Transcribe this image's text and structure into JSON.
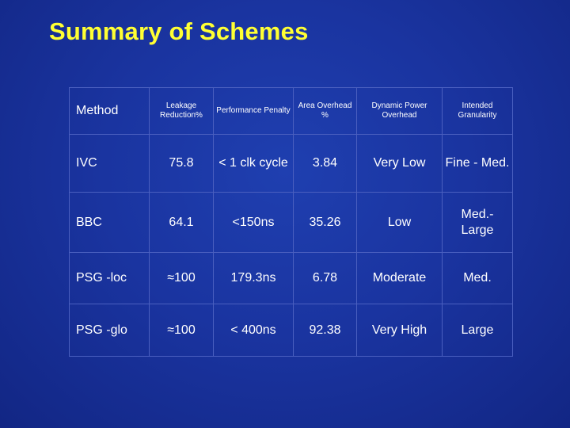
{
  "title": "Summary of Schemes",
  "table": {
    "headers": [
      "Method",
      "Leakage Reduction%",
      "Performance Penalty",
      "Area Overhead %",
      "Dynamic Power Overhead",
      "Intended Granularity"
    ],
    "rows": [
      [
        "IVC",
        "75.8",
        "< 1 clk cycle",
        "3.84",
        "Very Low",
        "Fine - Med."
      ],
      [
        "BBC",
        "64.1",
        "<150ns",
        "35.26",
        "Low",
        "Med.- Large"
      ],
      [
        "PSG -loc",
        "≈100",
        "179.3ns",
        "6.78",
        "Moderate",
        "Med."
      ],
      [
        "PSG -glo",
        "≈100",
        "< 400ns",
        "92.38",
        "Very High",
        "Large"
      ]
    ]
  },
  "colors": {
    "background": "#1a34a0",
    "title": "#ffff33",
    "text": "#ffffff",
    "border": "#4a5fbf"
  }
}
